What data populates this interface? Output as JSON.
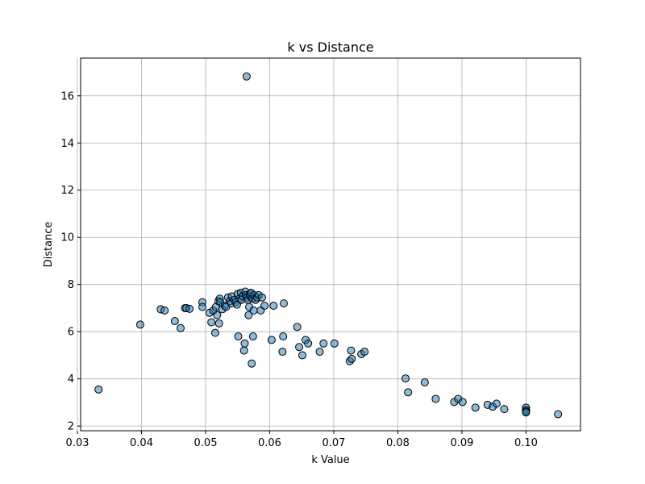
{
  "chart_data": {
    "type": "scatter",
    "title": "k vs Distance",
    "xlabel": "k Value",
    "ylabel": "Distance",
    "xlim": [
      0.0305,
      0.1085
    ],
    "ylim": [
      1.8,
      17.6
    ],
    "xticks": [
      0.03,
      0.04,
      0.05,
      0.06,
      0.07,
      0.08,
      0.09,
      0.1
    ],
    "xtick_labels": [
      "0.03",
      "0.04",
      "0.05",
      "0.06",
      "0.07",
      "0.08",
      "0.09",
      "0.10"
    ],
    "yticks": [
      2,
      4,
      6,
      8,
      10,
      12,
      14,
      16
    ],
    "ytick_labels": [
      "2",
      "4",
      "6",
      "8",
      "10",
      "12",
      "14",
      "16"
    ],
    "grid": true,
    "point_color": "#1f77b4",
    "points": [
      [
        0.0333,
        3.55
      ],
      [
        0.0398,
        6.3
      ],
      [
        0.043,
        6.95
      ],
      [
        0.0436,
        6.9
      ],
      [
        0.0452,
        6.45
      ],
      [
        0.0461,
        6.15
      ],
      [
        0.0468,
        7.0
      ],
      [
        0.047,
        7.0
      ],
      [
        0.0475,
        6.97
      ],
      [
        0.0495,
        7.25
      ],
      [
        0.0495,
        7.05
      ],
      [
        0.0506,
        6.8
      ],
      [
        0.0509,
        6.4
      ],
      [
        0.0512,
        6.9
      ],
      [
        0.0515,
        5.95
      ],
      [
        0.0516,
        7.05
      ],
      [
        0.0518,
        6.7
      ],
      [
        0.052,
        7.3
      ],
      [
        0.0521,
        6.35
      ],
      [
        0.0522,
        7.4
      ],
      [
        0.0523,
        7.25
      ],
      [
        0.0526,
        6.95
      ],
      [
        0.053,
        7.1
      ],
      [
        0.0532,
        7.05
      ],
      [
        0.0535,
        7.45
      ],
      [
        0.0538,
        7.3
      ],
      [
        0.054,
        7.2
      ],
      [
        0.0541,
        7.5
      ],
      [
        0.0545,
        7.35
      ],
      [
        0.0547,
        7.25
      ],
      [
        0.0549,
        7.15
      ],
      [
        0.055,
        7.6
      ],
      [
        0.0551,
        5.8
      ],
      [
        0.0553,
        7.4
      ],
      [
        0.0555,
        7.65
      ],
      [
        0.0556,
        7.35
      ],
      [
        0.0558,
        7.5
      ],
      [
        0.056,
        5.2
      ],
      [
        0.0561,
        5.5
      ],
      [
        0.0562,
        7.7
      ],
      [
        0.0563,
        7.55
      ],
      [
        0.0564,
        16.82
      ],
      [
        0.0565,
        7.45
      ],
      [
        0.0566,
        7.35
      ],
      [
        0.0567,
        6.7
      ],
      [
        0.0568,
        7.05
      ],
      [
        0.0569,
        7.6
      ],
      [
        0.057,
        7.5
      ],
      [
        0.0571,
        7.65
      ],
      [
        0.0572,
        4.65
      ],
      [
        0.0573,
        7.4
      ],
      [
        0.0574,
        5.8
      ],
      [
        0.0575,
        6.9
      ],
      [
        0.0576,
        7.55
      ],
      [
        0.0578,
        7.35
      ],
      [
        0.058,
        7.45
      ],
      [
        0.0583,
        7.55
      ],
      [
        0.0586,
        6.9
      ],
      [
        0.0588,
        7.45
      ],
      [
        0.0592,
        7.1
      ],
      [
        0.0603,
        5.65
      ],
      [
        0.0606,
        7.1
      ],
      [
        0.062,
        5.15
      ],
      [
        0.0621,
        5.8
      ],
      [
        0.0622,
        7.2
      ],
      [
        0.0643,
        6.2
      ],
      [
        0.0646,
        5.35
      ],
      [
        0.0651,
        5.0
      ],
      [
        0.0656,
        5.65
      ],
      [
        0.066,
        5.5
      ],
      [
        0.0678,
        5.15
      ],
      [
        0.0684,
        5.5
      ],
      [
        0.0701,
        5.5
      ],
      [
        0.0725,
        4.75
      ],
      [
        0.0727,
        5.2
      ],
      [
        0.0728,
        4.85
      ],
      [
        0.0743,
        5.05
      ],
      [
        0.0748,
        5.15
      ],
      [
        0.0812,
        4.02
      ],
      [
        0.0816,
        3.43
      ],
      [
        0.0842,
        3.85
      ],
      [
        0.0859,
        3.15
      ],
      [
        0.0888,
        3.02
      ],
      [
        0.0894,
        3.15
      ],
      [
        0.0901,
        3.02
      ],
      [
        0.0921,
        2.78
      ],
      [
        0.094,
        2.9
      ],
      [
        0.0948,
        2.82
      ],
      [
        0.0954,
        2.95
      ],
      [
        0.0966,
        2.72
      ],
      [
        0.1,
        2.78
      ],
      [
        0.1,
        2.68
      ],
      [
        0.1,
        2.62
      ],
      [
        0.1,
        2.58
      ],
      [
        0.105,
        2.5
      ]
    ]
  }
}
